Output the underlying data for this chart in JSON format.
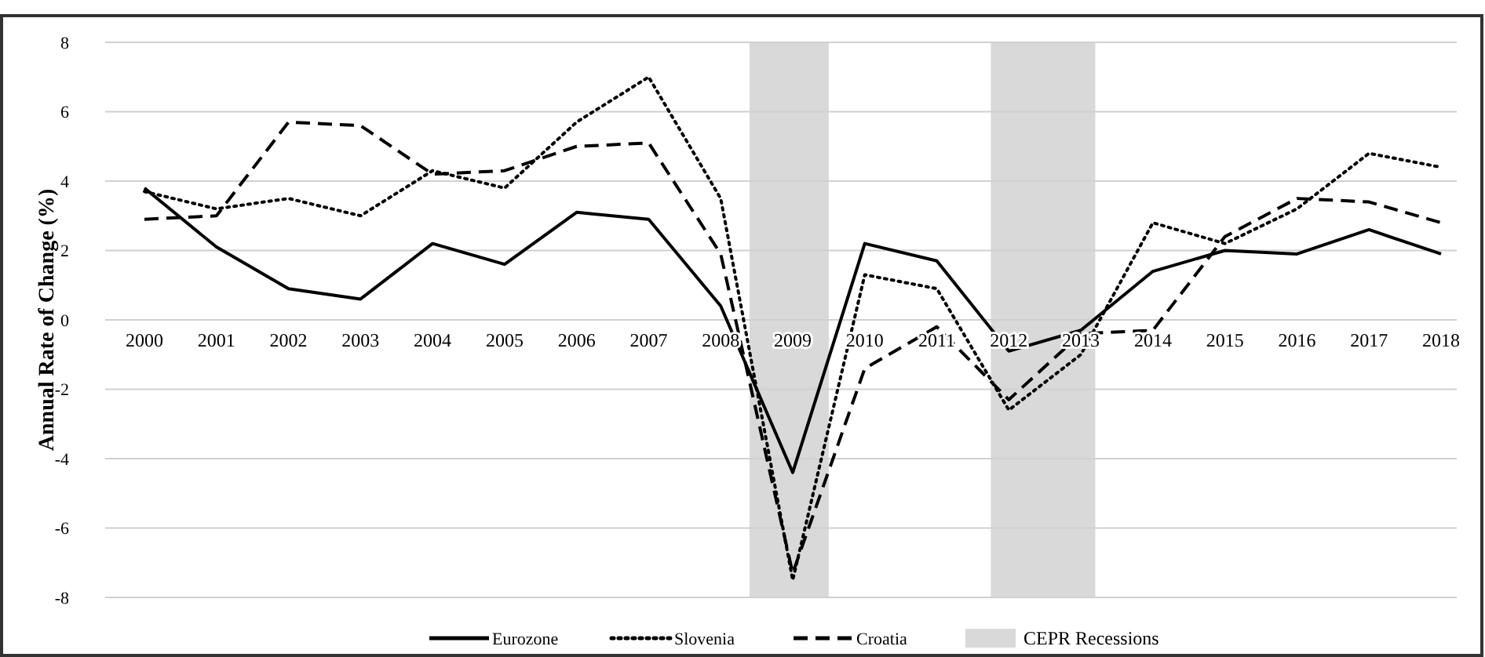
{
  "chart_data": {
    "type": "line",
    "ylabel": "Annual Rate of Change (%)",
    "x": [
      2000,
      2001,
      2002,
      2003,
      2004,
      2005,
      2006,
      2007,
      2008,
      2009,
      2010,
      2011,
      2012,
      2013,
      2014,
      2015,
      2016,
      2017,
      2018
    ],
    "xlim": [
      2000,
      2018
    ],
    "xticks": [
      2000,
      2001,
      2002,
      2003,
      2004,
      2005,
      2006,
      2007,
      2008,
      2009,
      2010,
      2011,
      2012,
      2013,
      2014,
      2015,
      2016,
      2017,
      2018
    ],
    "ylim": [
      -8,
      8
    ],
    "yticks": [
      -8,
      -6,
      -4,
      -2,
      0,
      2,
      4,
      6,
      8
    ],
    "grid": "y",
    "legend": "bottom",
    "series": [
      {
        "name": "Eurozone",
        "color": "#000000",
        "line_style": "solid",
        "values": [
          3.8,
          2.1,
          0.9,
          0.6,
          2.2,
          1.6,
          3.1,
          2.9,
          0.4,
          -4.4,
          2.2,
          1.7,
          -0.9,
          -0.3,
          1.4,
          2.0,
          1.9,
          2.6,
          1.9
        ]
      },
      {
        "name": "Slovenia",
        "color": "#000000",
        "line_style": "dotted",
        "values": [
          3.7,
          3.2,
          3.5,
          3.0,
          4.3,
          3.8,
          5.7,
          7.0,
          3.5,
          -7.5,
          1.3,
          0.9,
          -2.6,
          -1.0,
          2.8,
          2.2,
          3.2,
          4.8,
          4.4
        ]
      },
      {
        "name": "Croatia",
        "color": "#000000",
        "line_style": "dashed",
        "values": [
          2.9,
          3.0,
          5.7,
          5.6,
          4.2,
          4.3,
          5.0,
          5.1,
          1.9,
          -7.3,
          -1.4,
          -0.2,
          -2.3,
          -0.4,
          -0.3,
          2.4,
          3.5,
          3.4,
          2.8
        ]
      }
    ],
    "bands": [
      {
        "axis": "x",
        "from": 2008.4,
        "to": 2009.5,
        "label": "CEPR Recessions",
        "color": "#d9d9d9"
      },
      {
        "axis": "x",
        "from": 2011.75,
        "to": 2013.2,
        "color": "#d9d9d9"
      }
    ]
  }
}
